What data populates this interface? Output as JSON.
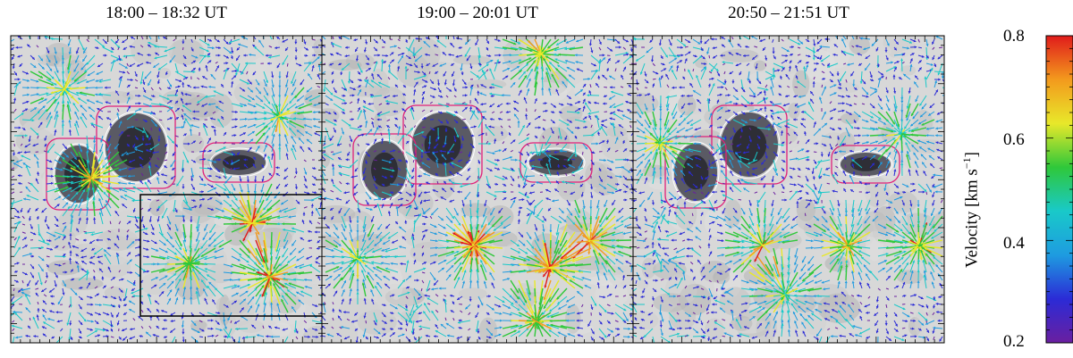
{
  "panels": [
    {
      "title": "18:00 – 18:32 UT"
    },
    {
      "title": "19:00 – 20:01 UT"
    },
    {
      "title": "20:50 – 21:51 UT"
    }
  ],
  "colorbar": {
    "label": "Velocity [km s",
    "label_sup": "−1",
    "label_end": "]",
    "ticks": [
      "0.8",
      "0.6",
      "0.4",
      "0.2"
    ],
    "min": 0.2,
    "max": 0.8,
    "colors": [
      "#6a1fa0",
      "#2b2bd6",
      "#1e9be0",
      "#19c9c9",
      "#2fc83a",
      "#e8e82a",
      "#f39a1d",
      "#e01b1b"
    ]
  },
  "colors": {
    "background": "#d8d8d8",
    "contour": "#e0207a",
    "box": "#000000"
  }
}
